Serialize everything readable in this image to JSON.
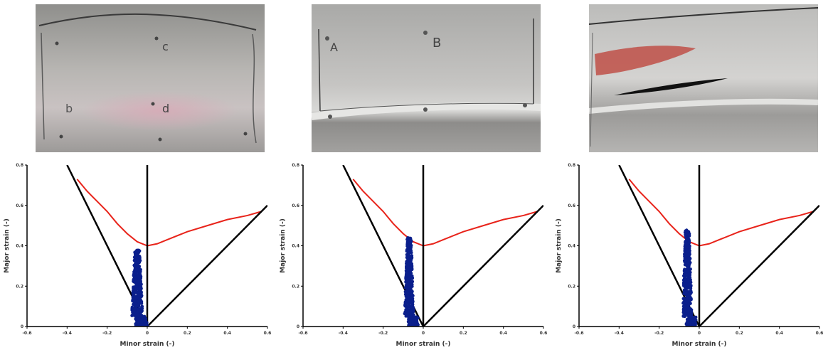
{
  "photos": [
    {
      "name": "specimen-photo-1",
      "labels": [
        "c",
        "b",
        "d"
      ]
    },
    {
      "name": "specimen-photo-2",
      "labels": [
        "A",
        "B"
      ]
    },
    {
      "name": "specimen-photo-3",
      "labels": []
    }
  ],
  "colors": {
    "flc": "#e8231a",
    "bounds": "#000000",
    "points": "#0a1f8c"
  },
  "chart_data": [
    {
      "type": "scatter",
      "xlabel": "Minor strain (-)",
      "ylabel": "Major strain (-)",
      "xlim": [
        -0.6,
        0.6
      ],
      "ylim": [
        0,
        0.8
      ],
      "xticks": [
        "-0.6",
        "-0.4",
        "-0.2",
        "0",
        "0.2",
        "0.4",
        "0.6"
      ],
      "yticks": [
        "0",
        "0.2",
        "0.4",
        "0.6",
        "0.8"
      ],
      "grid": false,
      "series": [
        {
          "role": "flc",
          "x": [
            -0.35,
            -0.3,
            -0.25,
            -0.2,
            -0.15,
            -0.1,
            -0.05,
            0,
            0.05,
            0.1,
            0.2,
            0.3,
            0.4,
            0.5,
            0.57
          ],
          "y": [
            0.73,
            0.67,
            0.62,
            0.57,
            0.51,
            0.46,
            0.42,
            0.4,
            0.41,
            0.43,
            0.47,
            0.5,
            0.53,
            0.55,
            0.57
          ]
        },
        {
          "role": "bound-left",
          "x": [
            -0.4,
            0
          ],
          "y": [
            0.8,
            0
          ]
        },
        {
          "role": "bound-right",
          "x": [
            0,
            0.6
          ],
          "y": [
            0,
            0.6
          ]
        },
        {
          "role": "vertical",
          "x": [
            0,
            0
          ],
          "y": [
            0,
            0.8
          ]
        },
        {
          "role": "measured",
          "x_center": -0.05,
          "x_spread": 0.03,
          "y_max": 0.38,
          "count": 450
        }
      ]
    },
    {
      "type": "scatter",
      "xlabel": "Minor strain (-)",
      "ylabel": "Major strain (-)",
      "xlim": [
        -0.6,
        0.6
      ],
      "ylim": [
        0,
        0.8
      ],
      "xticks": [
        "-0.6",
        "-0.4",
        "-0.2",
        "0",
        "0.2",
        "0.4",
        "0.6"
      ],
      "yticks": [
        "0",
        "0.2",
        "0.4",
        "0.6",
        "0.8"
      ],
      "grid": false,
      "series": [
        {
          "role": "flc",
          "x": [
            -0.35,
            -0.3,
            -0.25,
            -0.2,
            -0.15,
            -0.1,
            -0.05,
            0,
            0.05,
            0.1,
            0.2,
            0.3,
            0.4,
            0.5,
            0.57
          ],
          "y": [
            0.73,
            0.67,
            0.62,
            0.57,
            0.51,
            0.46,
            0.42,
            0.4,
            0.41,
            0.43,
            0.47,
            0.5,
            0.53,
            0.55,
            0.57
          ]
        },
        {
          "role": "bound-left",
          "x": [
            -0.4,
            0
          ],
          "y": [
            0.8,
            0
          ]
        },
        {
          "role": "bound-right",
          "x": [
            0,
            0.6
          ],
          "y": [
            0,
            0.6
          ]
        },
        {
          "role": "vertical",
          "x": [
            0,
            0
          ],
          "y": [
            0,
            0.8
          ]
        },
        {
          "role": "measured",
          "x_center": -0.07,
          "x_spread": 0.025,
          "y_max": 0.44,
          "count": 450
        }
      ]
    },
    {
      "type": "scatter",
      "xlabel": "Minor strain (-)",
      "ylabel": "Major strain (-)",
      "xlim": [
        -0.6,
        0.6
      ],
      "ylim": [
        0,
        0.8
      ],
      "xticks": [
        "-0.6",
        "-0.4",
        "-0.2",
        "0",
        "0.2",
        "0.4",
        "0.6"
      ],
      "yticks": [
        "0",
        "0.2",
        "0.4",
        "0.6",
        "0.8"
      ],
      "grid": false,
      "series": [
        {
          "role": "flc",
          "x": [
            -0.35,
            -0.3,
            -0.25,
            -0.2,
            -0.15,
            -0.1,
            -0.05,
            0,
            0.05,
            0.1,
            0.2,
            0.3,
            0.4,
            0.5,
            0.57
          ],
          "y": [
            0.73,
            0.67,
            0.62,
            0.57,
            0.51,
            0.46,
            0.42,
            0.4,
            0.41,
            0.43,
            0.47,
            0.5,
            0.53,
            0.55,
            0.57
          ]
        },
        {
          "role": "bound-left",
          "x": [
            -0.4,
            0
          ],
          "y": [
            0.8,
            0
          ]
        },
        {
          "role": "bound-right",
          "x": [
            0,
            0.6
          ],
          "y": [
            0,
            0.6
          ]
        },
        {
          "role": "vertical",
          "x": [
            0,
            0
          ],
          "y": [
            0,
            0.8
          ]
        },
        {
          "role": "measured",
          "x_center": -0.06,
          "x_spread": 0.025,
          "y_max": 0.48,
          "count": 400
        }
      ]
    }
  ]
}
